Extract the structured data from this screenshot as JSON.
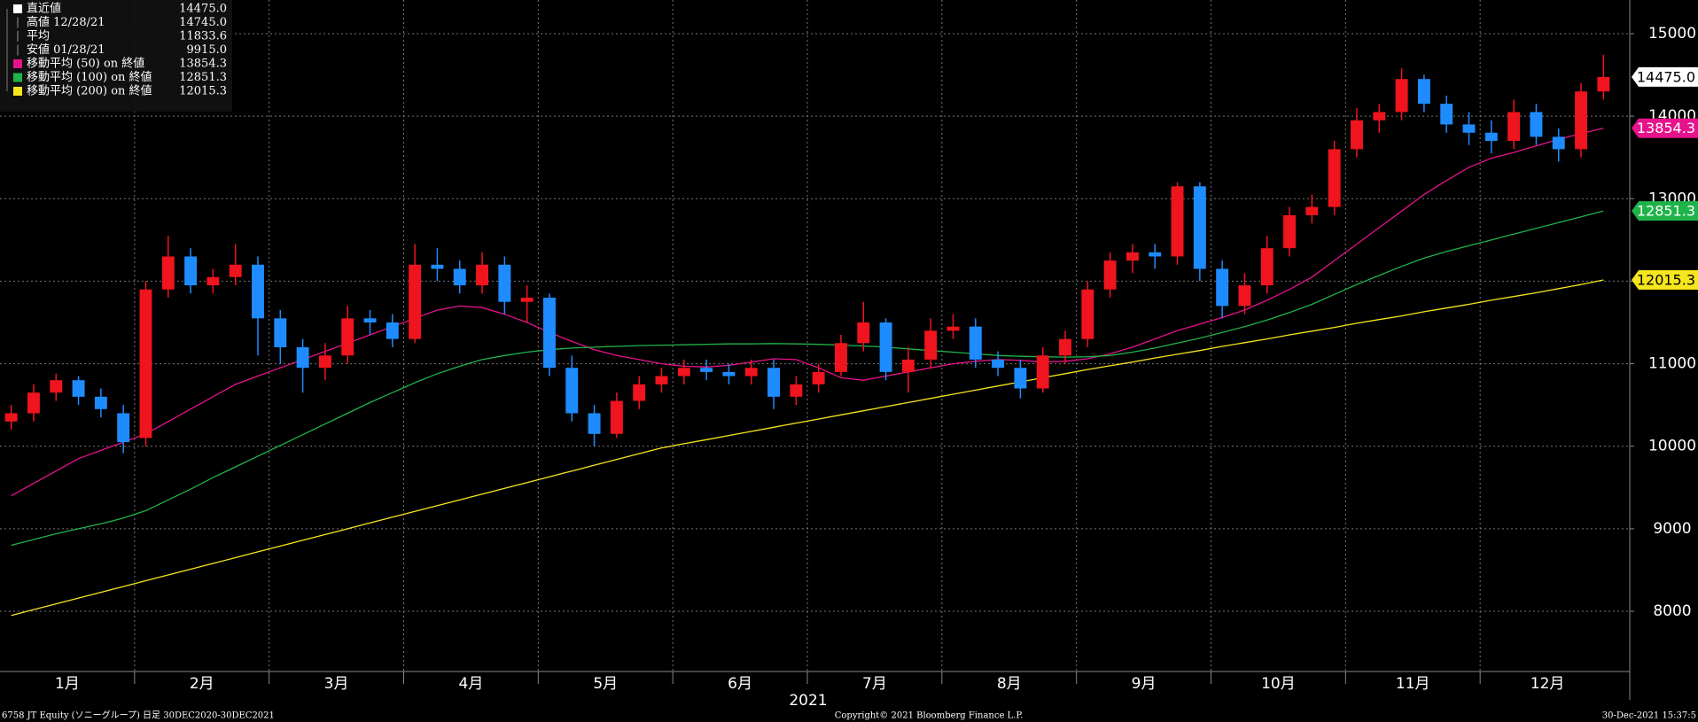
{
  "chart_data": {
    "type": "candlestick",
    "categories": [
      "1月",
      null,
      null,
      null,
      null,
      null,
      "2月",
      null,
      null,
      null,
      null,
      null,
      "3月",
      null,
      null,
      null,
      null,
      null,
      "4月",
      null,
      null,
      null,
      null,
      null,
      "5月",
      null,
      null,
      null,
      null,
      null,
      "6月",
      null,
      null,
      null,
      null,
      null,
      "7月",
      null,
      null,
      null,
      null,
      null,
      "8月",
      null,
      null,
      null,
      null,
      null,
      "9月",
      null,
      null,
      null,
      null,
      null,
      "10月",
      null,
      null,
      null,
      null,
      null,
      "11月",
      null,
      null,
      null,
      null,
      null,
      "12月",
      null,
      null,
      null,
      null,
      null
    ],
    "open": [
      10300,
      10400,
      10650,
      10800,
      10600,
      10400,
      10100,
      11900,
      12300,
      11950,
      12050,
      12200,
      11550,
      11200,
      10950,
      11100,
      11550,
      11500,
      11300,
      12200,
      12150,
      11950,
      12200,
      11750,
      11800,
      10950,
      10400,
      10150,
      10550,
      10750,
      10850,
      10950,
      10900,
      10850,
      10950,
      10600,
      10750,
      10900,
      11250,
      11500,
      10900,
      11050,
      11400,
      11450,
      11050,
      10950,
      10700,
      11100,
      11300,
      11900,
      12250,
      12350,
      12300,
      13150,
      12150,
      11700,
      11950,
      12400,
      12800,
      12900,
      13600,
      13950,
      14050,
      14450,
      14150,
      13900,
      13800,
      13700,
      14050,
      13750,
      13600,
      14300
    ],
    "high": [
      10500,
      10750,
      10880,
      10850,
      10700,
      10500,
      12000,
      12550,
      12400,
      12150,
      12450,
      12300,
      11650,
      11300,
      11250,
      11700,
      11650,
      11600,
      12450,
      12400,
      12250,
      12350,
      12300,
      11950,
      11850,
      11100,
      10500,
      10650,
      10850,
      10950,
      11050,
      11050,
      11000,
      11050,
      11050,
      10850,
      11000,
      11350,
      11750,
      11550,
      11200,
      11550,
      11600,
      11550,
      11150,
      11050,
      11200,
      11400,
      12000,
      12350,
      12450,
      12450,
      13200,
      13200,
      12250,
      12100,
      12550,
      12900,
      13050,
      13700,
      14100,
      14150,
      14580,
      14500,
      14250,
      14050,
      13950,
      14200,
      14150,
      13850,
      14400,
      14745
    ],
    "low": [
      10200,
      10300,
      10550,
      10500,
      10350,
      9915,
      10000,
      11800,
      11850,
      11850,
      11950,
      11100,
      11000,
      10650,
      10800,
      11000,
      11350,
      11200,
      11250,
      12000,
      11850,
      11850,
      11600,
      11500,
      10850,
      10300,
      10000,
      10100,
      10450,
      10650,
      10750,
      10800,
      10750,
      10750,
      10450,
      10500,
      10650,
      10850,
      11150,
      10800,
      10650,
      10950,
      11300,
      10950,
      10850,
      10580,
      10650,
      11000,
      11200,
      11800,
      12100,
      12150,
      12200,
      12000,
      11550,
      11600,
      11850,
      12300,
      12700,
      12800,
      13500,
      13800,
      13950,
      14050,
      13800,
      13650,
      13550,
      13600,
      13650,
      13450,
      13500,
      14200
    ],
    "close": [
      10400,
      10650,
      10800,
      10600,
      10450,
      10050,
      11900,
      12300,
      11950,
      12050,
      12200,
      11550,
      11200,
      10950,
      11100,
      11550,
      11500,
      11300,
      12200,
      12150,
      11950,
      12200,
      11750,
      11800,
      10950,
      10400,
      10150,
      10550,
      10750,
      10850,
      10950,
      10900,
      10850,
      10950,
      10600,
      10750,
      10900,
      11250,
      11500,
      10900,
      11050,
      11400,
      11450,
      11050,
      10950,
      10700,
      11100,
      11300,
      11900,
      12250,
      12350,
      12300,
      13150,
      12150,
      11700,
      11950,
      12400,
      12800,
      12900,
      13600,
      13950,
      14050,
      14450,
      14150,
      13900,
      13800,
      13700,
      14050,
      13750,
      13600,
      14300,
      14475
    ],
    "up_color": "#f0141e",
    "down_color": "#1e8cff",
    "series": [
      {
        "name": "移動平均 (50) on 終値",
        "color": "#e6138c",
        "values": [
          9400,
          9550,
          9700,
          9850,
          9950,
          10050,
          10150,
          10300,
          10450,
          10600,
          10750,
          10850,
          10950,
          11050,
          11150,
          11250,
          11350,
          11450,
          11550,
          11650,
          11700,
          11680,
          11600,
          11500,
          11380,
          11270,
          11170,
          11100,
          11050,
          11000,
          10970,
          10960,
          10980,
          11020,
          11060,
          11050,
          10950,
          10830,
          10800,
          10850,
          10900,
          10950,
          11000,
          11030,
          11050,
          11040,
          11020,
          11030,
          11060,
          11120,
          11200,
          11300,
          11400,
          11480,
          11560,
          11650,
          11770,
          11900,
          12050,
          12250,
          12450,
          12650,
          12850,
          13050,
          13220,
          13380,
          13490,
          13560,
          13640,
          13720,
          13790,
          13854.3
        ]
      },
      {
        "name": "移動平均 (100) on 終値",
        "color": "#1fb34a",
        "values": [
          8800,
          8870,
          8940,
          9000,
          9060,
          9130,
          9220,
          9350,
          9480,
          9620,
          9750,
          9880,
          10010,
          10140,
          10270,
          10400,
          10530,
          10650,
          10770,
          10880,
          10970,
          11050,
          11100,
          11140,
          11170,
          11190,
          11200,
          11210,
          11220,
          11225,
          11230,
          11235,
          11240,
          11240,
          11245,
          11240,
          11235,
          11225,
          11215,
          11200,
          11180,
          11160,
          11140,
          11120,
          11100,
          11090,
          11085,
          11080,
          11085,
          11100,
          11140,
          11190,
          11250,
          11310,
          11380,
          11450,
          11530,
          11620,
          11720,
          11840,
          11960,
          12070,
          12180,
          12280,
          12360,
          12430,
          12500,
          12570,
          12640,
          12710,
          12780,
          12851.3
        ]
      },
      {
        "name": "移動平均 (200) on 終値",
        "color": "#f5e61e",
        "values": [
          7950,
          8020,
          8090,
          8160,
          8230,
          8300,
          8370,
          8440,
          8510,
          8580,
          8650,
          8720,
          8790,
          8860,
          8930,
          9000,
          9070,
          9140,
          9210,
          9280,
          9350,
          9420,
          9490,
          9560,
          9630,
          9700,
          9770,
          9840,
          9910,
          9980,
          10030,
          10080,
          10130,
          10180,
          10230,
          10280,
          10330,
          10380,
          10430,
          10480,
          10530,
          10580,
          10630,
          10680,
          10730,
          10780,
          10830,
          10880,
          10930,
          10975,
          11020,
          11070,
          11115,
          11160,
          11210,
          11255,
          11300,
          11350,
          11395,
          11440,
          11490,
          11535,
          11580,
          11630,
          11675,
          11720,
          11770,
          11815,
          11860,
          11910,
          11960,
          12015.3
        ]
      }
    ],
    "stats": [
      {
        "label": "直近値",
        "value": 14475,
        "value_label": "14475.0"
      },
      {
        "label": "高値 12/28/21",
        "value": 14745,
        "value_label": "14745.0"
      },
      {
        "label": "平均",
        "value": 11833.6,
        "value_label": "11833.6"
      },
      {
        "label": "安値 01/28/21",
        "value": 9915,
        "value_label": "9915.0"
      }
    ],
    "last_color": "#ffffff",
    "ylim": [
      7270,
      15408
    ],
    "yticks": [
      8000,
      9000,
      10000,
      11000,
      12000,
      13000,
      14000,
      15000
    ],
    "grid": true,
    "x_label": "2021"
  },
  "footer": {
    "left": "6758 JT Equity (ソニーグループ)  日足 30DEC2020-30DEC2021",
    "center": "Copyright© 2021 Bloomberg Finance L.P.",
    "right": "30-Dec-2021 15:37:5"
  }
}
